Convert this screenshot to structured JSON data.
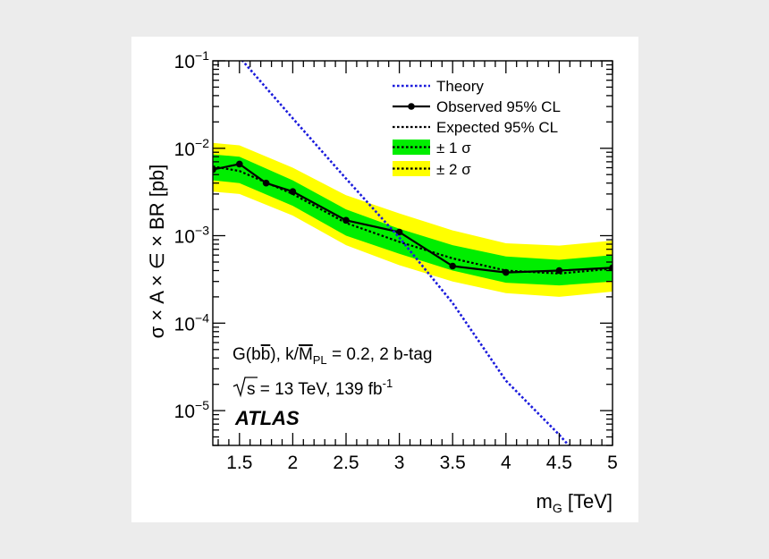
{
  "chart_data": {
    "type": "line",
    "xlabel": "m",
    "xlabel_sub": "G",
    "xlabel_unit": " [TeV]",
    "ylabel": "σ × A × ∈ × BR [pb]",
    "xlim": [
      1.25,
      5.0
    ],
    "ylim": [
      4e-06,
      0.1
    ],
    "yscale": "log",
    "x_ticks": [
      1.5,
      2,
      2.5,
      3,
      3.5,
      4,
      4.5,
      5
    ],
    "x_tick_labels": [
      "1.5",
      "2",
      "2.5",
      "3",
      "3.5",
      "4",
      "4.5",
      "5"
    ],
    "y_ticks": [
      {
        "base": "10",
        "exp": "−1",
        "value": 0.1
      },
      {
        "base": "10",
        "exp": "−2",
        "value": 0.01
      },
      {
        "base": "10",
        "exp": "−3",
        "value": 0.001
      },
      {
        "base": "10",
        "exp": "−4",
        "value": 0.0001
      },
      {
        "base": "10",
        "exp": "−5",
        "value": 1e-05
      }
    ],
    "legend_position": "top-right",
    "series": [
      {
        "name": "Theory",
        "style": "dotted",
        "color": "#1a1adc",
        "x": [
          1.25,
          1.5,
          2.0,
          2.5,
          3.0,
          3.5,
          4.0,
          4.5,
          5.0
        ],
        "y": [
          0.25,
          0.11,
          0.022,
          0.0045,
          0.00095,
          0.00017,
          2.2e-05,
          5.3e-06,
          1.1e-06
        ]
      },
      {
        "name": "Observed 95% CL",
        "style": "solid-markers",
        "color": "#000000",
        "x": [
          1.25,
          1.5,
          1.75,
          2.0,
          2.5,
          3.0,
          3.5,
          4.0,
          4.5,
          5.0
        ],
        "y": [
          0.0057,
          0.0066,
          0.004,
          0.0032,
          0.0015,
          0.0011,
          0.00045,
          0.00038,
          0.0004,
          0.00043
        ]
      },
      {
        "name": "Expected 95% CL",
        "style": "dotted",
        "color": "#000000",
        "x": [
          1.25,
          1.5,
          2.0,
          2.5,
          3.0,
          3.5,
          4.0,
          4.5,
          5.0
        ],
        "y": [
          0.0062,
          0.0055,
          0.003,
          0.0014,
          0.00085,
          0.00055,
          0.0004,
          0.00037,
          0.00042
        ]
      }
    ],
    "bands": [
      {
        "name": "± 1 σ",
        "color": "#00ee00",
        "x": [
          1.25,
          1.5,
          2.0,
          2.5,
          3.0,
          3.5,
          4.0,
          4.5,
          5.0
        ],
        "low": [
          0.0043,
          0.004,
          0.0022,
          0.001,
          0.00062,
          0.0004,
          0.00029,
          0.00027,
          0.0003
        ],
        "high": [
          0.0085,
          0.008,
          0.0043,
          0.002,
          0.0012,
          0.00078,
          0.00058,
          0.00053,
          0.0006
        ]
      },
      {
        "name": "± 2 σ",
        "color": "#ffff00",
        "x": [
          1.25,
          1.5,
          2.0,
          2.5,
          3.0,
          3.5,
          4.0,
          4.5,
          5.0
        ],
        "low": [
          0.0032,
          0.003,
          0.0017,
          0.00078,
          0.00046,
          0.0003,
          0.00022,
          0.0002,
          0.00023
        ],
        "high": [
          0.0115,
          0.0108,
          0.006,
          0.0029,
          0.0018,
          0.00115,
          0.00082,
          0.00077,
          0.00088
        ]
      }
    ],
    "annotations": {
      "process_prefix": "G(b",
      "process_bbar": "b",
      "process_suffix": "), k/",
      "process_mpl": "M",
      "process_mpl_sub": "PL",
      "process_rest": " = 0.2, 2 b-tag",
      "energy_s": "s",
      "energy_text": " = 13 TeV, 139 fb",
      "energy_exp": "-1",
      "atlas": "ATLAS"
    }
  }
}
